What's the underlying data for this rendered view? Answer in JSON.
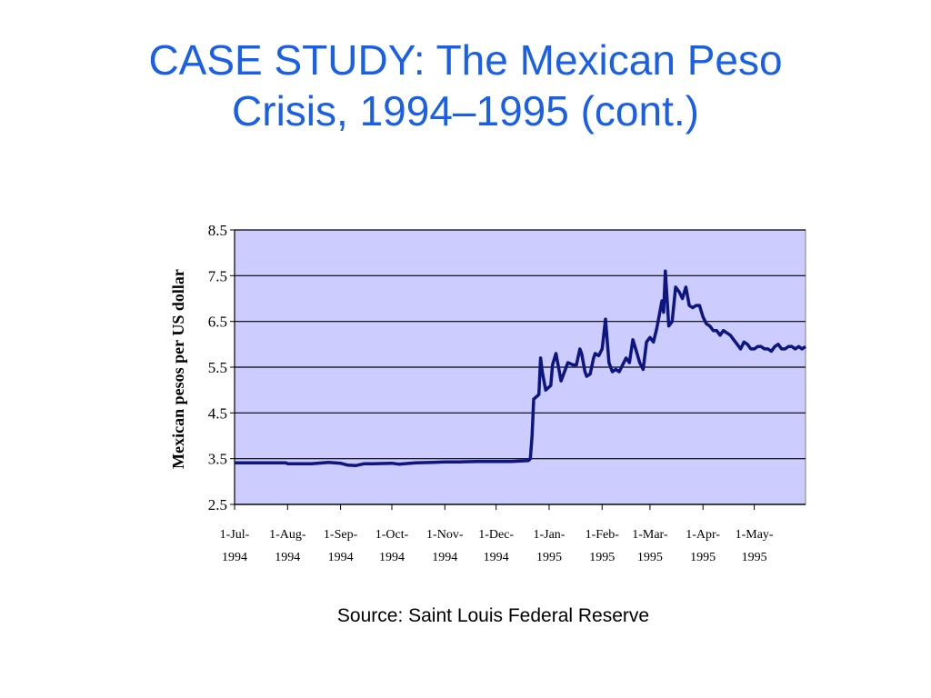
{
  "slide": {
    "title_line1": "CASE STUDY: The Mexican Peso",
    "title_line2": "Crisis, 1994–1995 (cont.)",
    "source": "Source: Saint Louis Federal Reserve",
    "title_color": "#1a5fe8"
  },
  "chart_data": {
    "type": "line",
    "title": "",
    "xlabel": "",
    "ylabel": "Mexican pesos per US dollar",
    "ylim": [
      2.5,
      8.5
    ],
    "yticks": [
      "8.5",
      "7.5",
      "6.5",
      "5.5",
      "4.5",
      "3.5",
      "2.5"
    ],
    "xlim": [
      "1994-07-01",
      "1995-05-31"
    ],
    "xticks": [
      {
        "date": "1994-07-01",
        "line1": "1-Jul-",
        "line2": "1994"
      },
      {
        "date": "1994-08-01",
        "line1": "1-Aug-",
        "line2": "1994"
      },
      {
        "date": "1994-09-01",
        "line1": "1-Sep-",
        "line2": "1994"
      },
      {
        "date": "1994-10-01",
        "line1": "1-Oct-",
        "line2": "1994"
      },
      {
        "date": "1994-11-01",
        "line1": "1-Nov-",
        "line2": "1994"
      },
      {
        "date": "1994-12-01",
        "line1": "1-Dec-",
        "line2": "1994"
      },
      {
        "date": "1995-01-01",
        "line1": "1-Jan-",
        "line2": "1995"
      },
      {
        "date": "1995-02-01",
        "line1": "1-Feb-",
        "line2": "1995"
      },
      {
        "date": "1995-03-01",
        "line1": "1-Mar-",
        "line2": "1995"
      },
      {
        "date": "1995-04-01",
        "line1": "1-Apr-",
        "line2": "1995"
      },
      {
        "date": "1995-05-01",
        "line1": "1-May-",
        "line2": "1995"
      }
    ],
    "grid": true,
    "plot_background": "#ccccff",
    "line_color": "#0d1580",
    "series": [
      {
        "x": [
          "1994-07-01",
          "1994-07-15",
          "1994-07-31",
          "1994-08-01",
          "1994-08-10",
          "1994-08-15",
          "1994-08-25",
          "1994-09-01",
          "1994-09-05",
          "1994-09-10",
          "1994-09-15",
          "1994-09-20",
          "1994-10-01",
          "1994-10-05",
          "1994-10-15",
          "1994-10-25",
          "1994-11-01",
          "1994-11-10",
          "1994-11-20",
          "1994-12-01",
          "1994-12-10",
          "1994-12-20",
          "1994-12-21",
          "1994-12-22",
          "1994-12-23",
          "1994-12-26",
          "1994-12-27",
          "1994-12-28",
          "1994-12-30",
          "1995-01-02",
          "1995-01-03",
          "1995-01-05",
          "1995-01-08",
          "1995-01-10",
          "1995-01-12",
          "1995-01-15",
          "1995-01-17",
          "1995-01-19",
          "1995-01-20",
          "1995-01-22",
          "1995-01-23",
          "1995-01-25",
          "1995-01-27",
          "1995-01-28",
          "1995-01-30",
          "1995-02-01",
          "1995-02-03",
          "1995-02-05",
          "1995-02-07",
          "1995-02-09",
          "1995-02-11",
          "1995-02-13",
          "1995-02-15",
          "1995-02-17",
          "1995-02-19",
          "1995-02-21",
          "1995-02-23",
          "1995-02-25",
          "1995-02-27",
          "1995-03-01",
          "1995-03-03",
          "1995-03-05",
          "1995-03-06",
          "1995-03-08",
          "1995-03-09",
          "1995-03-10",
          "1995-03-12",
          "1995-03-14",
          "1995-03-16",
          "1995-03-18",
          "1995-03-20",
          "1995-03-22",
          "1995-03-24",
          "1995-03-26",
          "1995-03-28",
          "1995-03-30",
          "1995-04-01",
          "1995-04-03",
          "1995-04-05",
          "1995-04-07",
          "1995-04-09",
          "1995-04-11",
          "1995-04-13",
          "1995-04-15",
          "1995-04-17",
          "1995-04-19",
          "1995-04-21",
          "1995-04-23",
          "1995-04-25",
          "1995-04-27",
          "1995-04-29",
          "1995-05-01",
          "1995-05-03",
          "1995-05-05",
          "1995-05-07",
          "1995-05-09",
          "1995-05-11",
          "1995-05-13",
          "1995-05-15",
          "1995-05-17",
          "1995-05-19",
          "1995-05-21",
          "1995-05-23",
          "1995-05-25",
          "1995-05-27",
          "1995-05-29",
          "1995-05-31"
        ],
        "y": [
          3.41,
          3.41,
          3.41,
          3.39,
          3.39,
          3.39,
          3.42,
          3.4,
          3.36,
          3.35,
          3.39,
          3.39,
          3.4,
          3.38,
          3.41,
          3.42,
          3.43,
          3.43,
          3.44,
          3.44,
          3.44,
          3.46,
          3.5,
          3.99,
          4.8,
          4.9,
          5.7,
          5.4,
          5.0,
          5.1,
          5.55,
          5.8,
          5.2,
          5.4,
          5.6,
          5.55,
          5.55,
          5.9,
          5.8,
          5.4,
          5.3,
          5.35,
          5.7,
          5.8,
          5.75,
          5.9,
          6.55,
          5.6,
          5.4,
          5.45,
          5.4,
          5.55,
          5.7,
          5.6,
          6.1,
          5.85,
          5.6,
          5.45,
          6.05,
          6.15,
          6.05,
          6.35,
          6.55,
          6.95,
          6.7,
          7.6,
          6.4,
          6.5,
          7.25,
          7.15,
          7.0,
          7.25,
          6.85,
          6.8,
          6.85,
          6.85,
          6.6,
          6.45,
          6.4,
          6.3,
          6.3,
          6.2,
          6.3,
          6.25,
          6.2,
          6.1,
          6.0,
          5.9,
          6.05,
          6.0,
          5.9,
          5.9,
          5.95,
          5.95,
          5.9,
          5.9,
          5.85,
          5.95,
          6.0,
          5.9,
          5.9,
          5.95,
          5.95,
          5.9,
          5.95,
          5.9,
          5.95
        ]
      }
    ]
  }
}
